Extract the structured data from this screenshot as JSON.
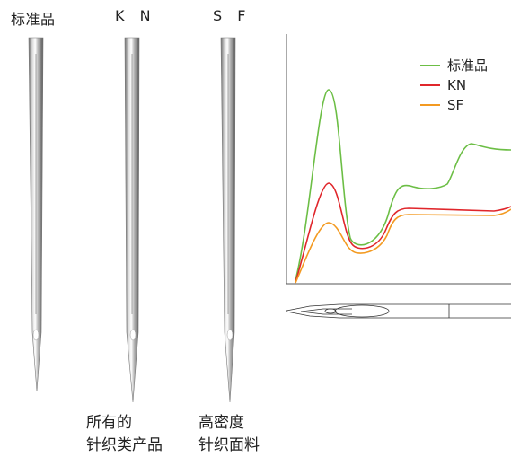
{
  "needles": [
    {
      "label": "标准品"
    },
    {
      "label": "K N"
    },
    {
      "label": "S F"
    }
  ],
  "captions": {
    "kn": [
      "所有的",
      "针织类产品"
    ],
    "sf": [
      "高密度",
      "针织面料"
    ]
  },
  "colors": {
    "standard": "#6cbe45",
    "kn": "#e0262b",
    "sf": "#f39a21"
  },
  "chart_data": {
    "type": "line",
    "series": [
      {
        "name": "标准品"
      },
      {
        "name": "KN"
      },
      {
        "name": "SF"
      }
    ]
  }
}
